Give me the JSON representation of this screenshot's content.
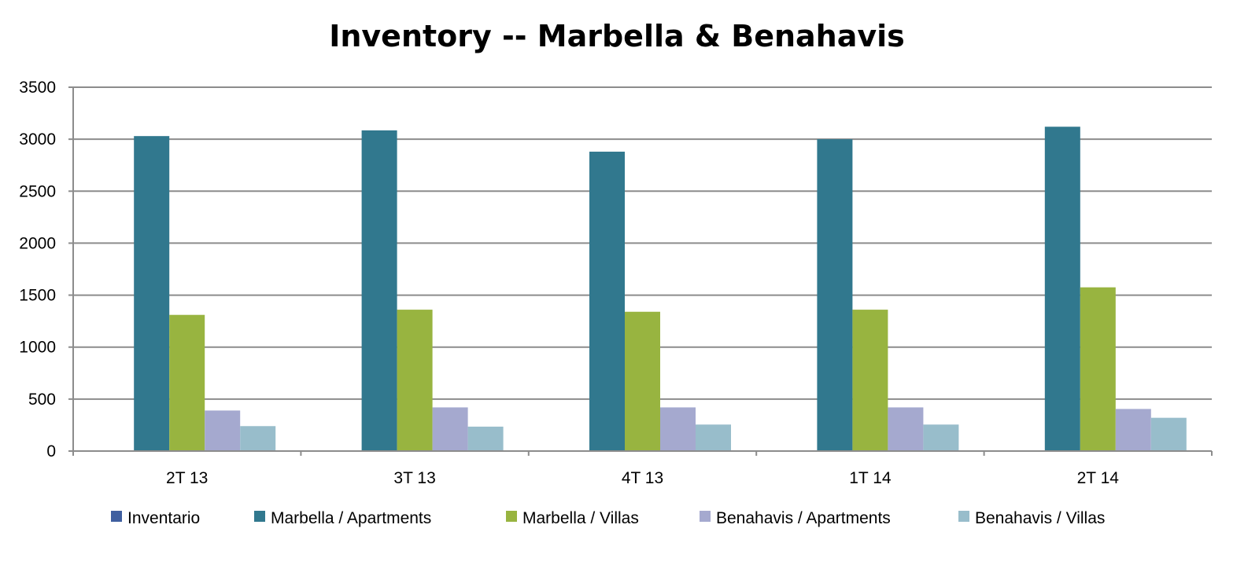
{
  "chart_data": {
    "type": "bar",
    "title": "Inventory -- Marbella & Benahavis",
    "xlabel": "",
    "ylabel": "",
    "categories": [
      "2T 13",
      "3T 13",
      "4T 13",
      "1T 14",
      "2T 14"
    ],
    "series": [
      {
        "name": "Inventario",
        "color": "#3F5FA0",
        "values": [
          0,
          0,
          0,
          0,
          0
        ]
      },
      {
        "name": "Marbella / Apartments",
        "color": "#31788E",
        "values": [
          3030,
          3085,
          2880,
          3000,
          3120
        ]
      },
      {
        "name": "Marbella / Villas",
        "color": "#98B440",
        "values": [
          1310,
          1360,
          1340,
          1360,
          1575
        ]
      },
      {
        "name": "Benahavis / Apartments",
        "color": "#A5A9CF",
        "values": [
          390,
          420,
          420,
          420,
          405
        ]
      },
      {
        "name": "Benahavis / Villas",
        "color": "#98BDCB",
        "values": [
          240,
          235,
          255,
          255,
          320
        ]
      }
    ],
    "ylim": [
      0,
      3500
    ],
    "yticks": [
      "0",
      "500",
      "1000",
      "1500",
      "2000",
      "2500",
      "3000",
      "3500"
    ],
    "grid": true,
    "legend": "bottom"
  }
}
